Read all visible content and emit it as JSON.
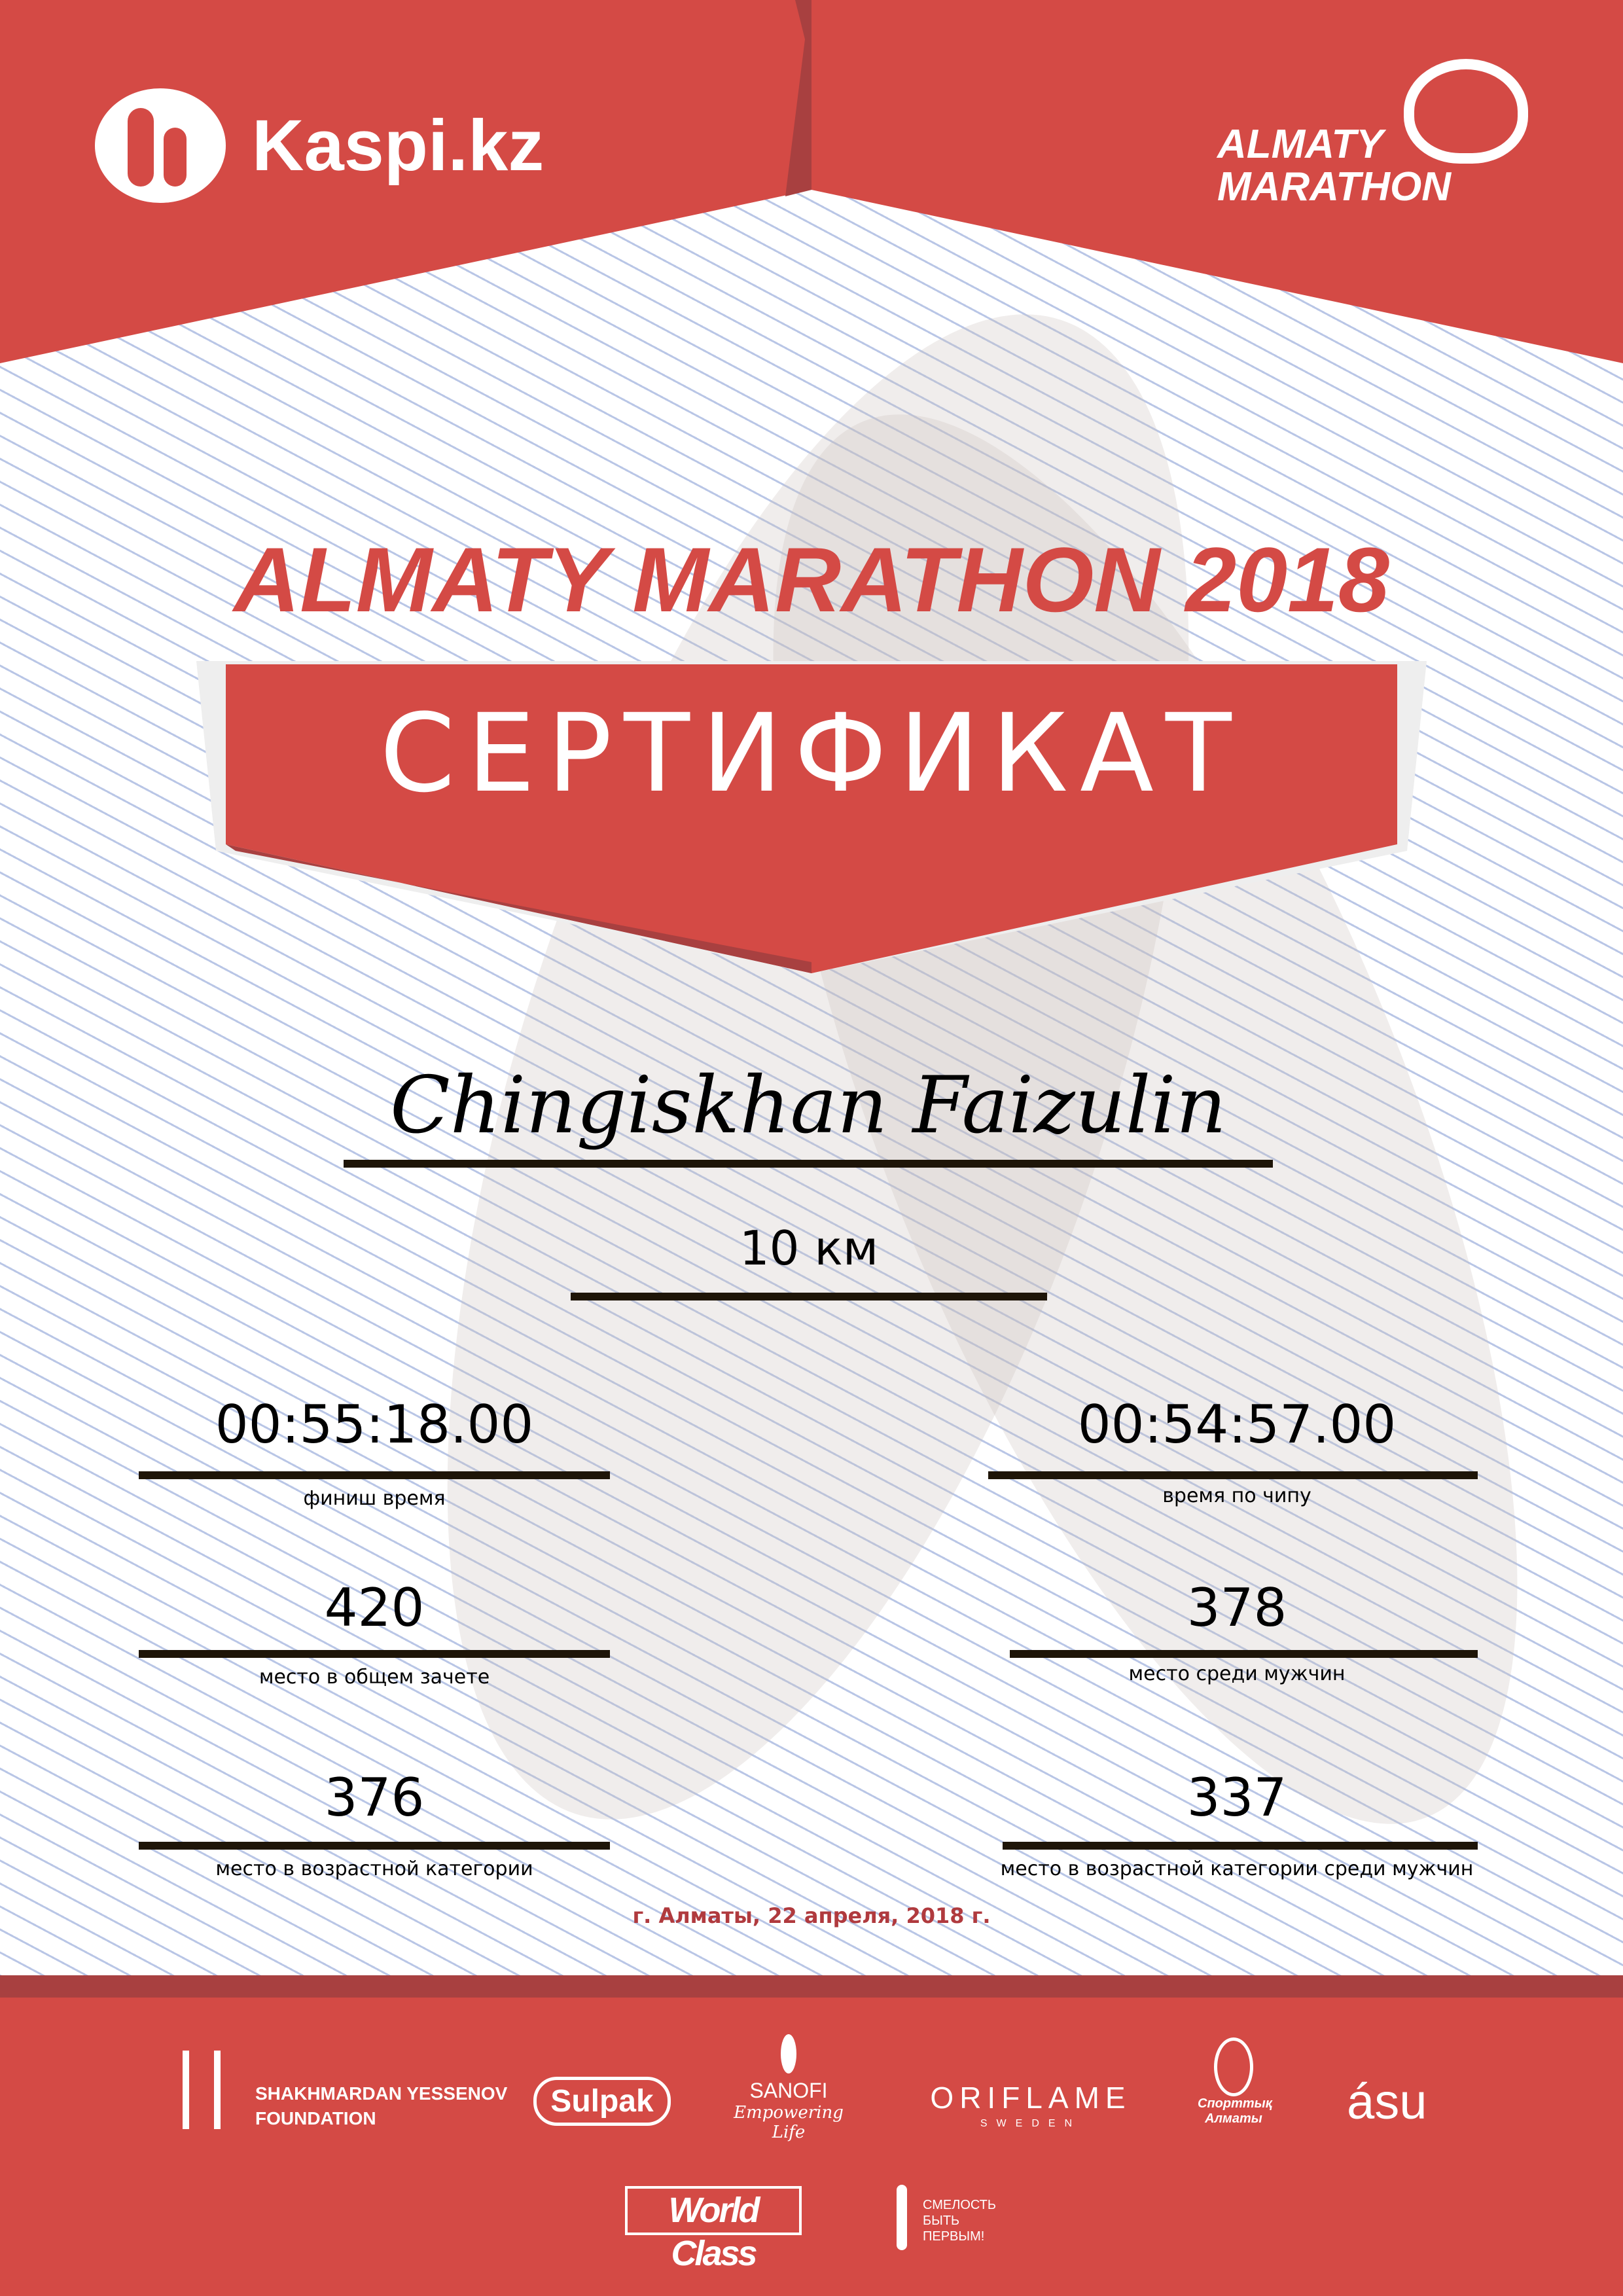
{
  "colors": {
    "brand_red": "#d44a45",
    "dark_red": "#a84040",
    "date_red": "#b03a3e",
    "line": "#1e1508"
  },
  "header": {
    "kaspi_logo": "Kaspi.kz",
    "marathon_logo": [
      "ALMATY",
      "MARATHON"
    ]
  },
  "title": "ALMATY MARATHON 2018",
  "banner": "СЕРТИФИКАТ",
  "participant": {
    "name": "Chingiskhan Faizulin",
    "distance": "10 км"
  },
  "results": [
    {
      "value": "00:55:18.00",
      "label": "финиш время"
    },
    {
      "value": "00:54:57.00",
      "label": "время по чипу"
    },
    {
      "value": "420",
      "label": "место в общем зачете"
    },
    {
      "value": "378",
      "label": "место среди мужчин"
    },
    {
      "value": "376",
      "label": "место в возрастной категории"
    },
    {
      "value": "337",
      "label": "место в возрастной категории среди мужчин"
    }
  ],
  "date": "г. Алматы, 22 апреля, 2018 г.",
  "sponsors": {
    "yessenov": [
      "SHAKHMARDAN YESSENOV",
      "FOUNDATION"
    ],
    "sulpak": "Sulpak",
    "sanofi": [
      "SANOFI",
      "Empowering Life"
    ],
    "oriflame": [
      "ORIFLAME",
      "SWEDEN"
    ],
    "sport_almaty": [
      "Спорттық",
      "Алматы"
    ],
    "asu": "ásu",
    "worldclass": "World Class",
    "smelost": [
      "СМЕЛОСТЬ",
      "БЫТЬ",
      "ПЕРВЫМ!"
    ]
  }
}
